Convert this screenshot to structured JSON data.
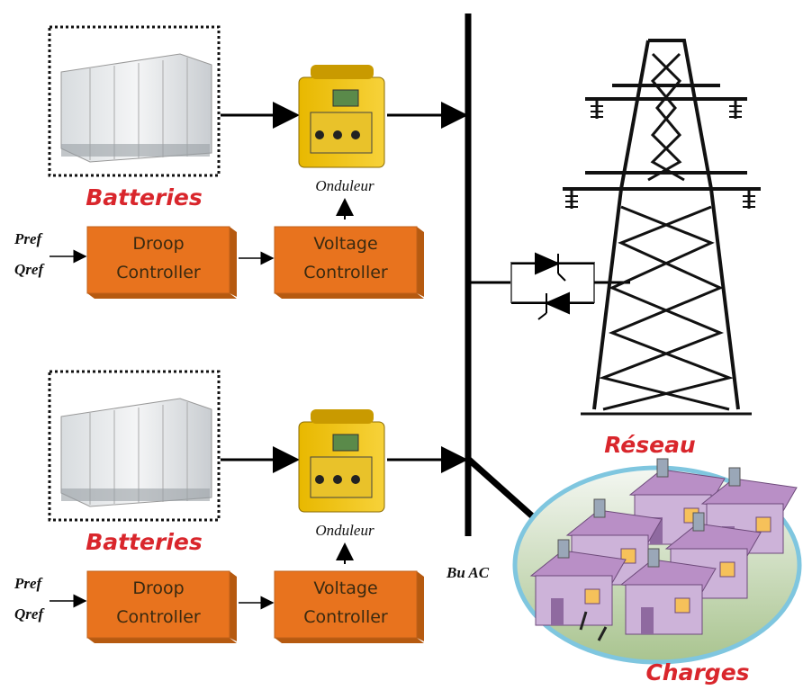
{
  "units": [
    {
      "battery": "Batteries",
      "inverter": "Onduleur",
      "inputs": [
        "Pref",
        "Qref"
      ],
      "droop": [
        "Droop",
        "Controller"
      ],
      "voltage": [
        "Voltage",
        "Controller"
      ]
    },
    {
      "battery": "Batteries",
      "inverter": "Onduleur",
      "inputs": [
        "Pref",
        "Qref"
      ],
      "droop": [
        "Droop",
        "Controller"
      ],
      "voltage": [
        "Voltage",
        "Controller"
      ]
    }
  ],
  "grid": "Réseau",
  "bus": "Bu AC",
  "loads": "Charges"
}
